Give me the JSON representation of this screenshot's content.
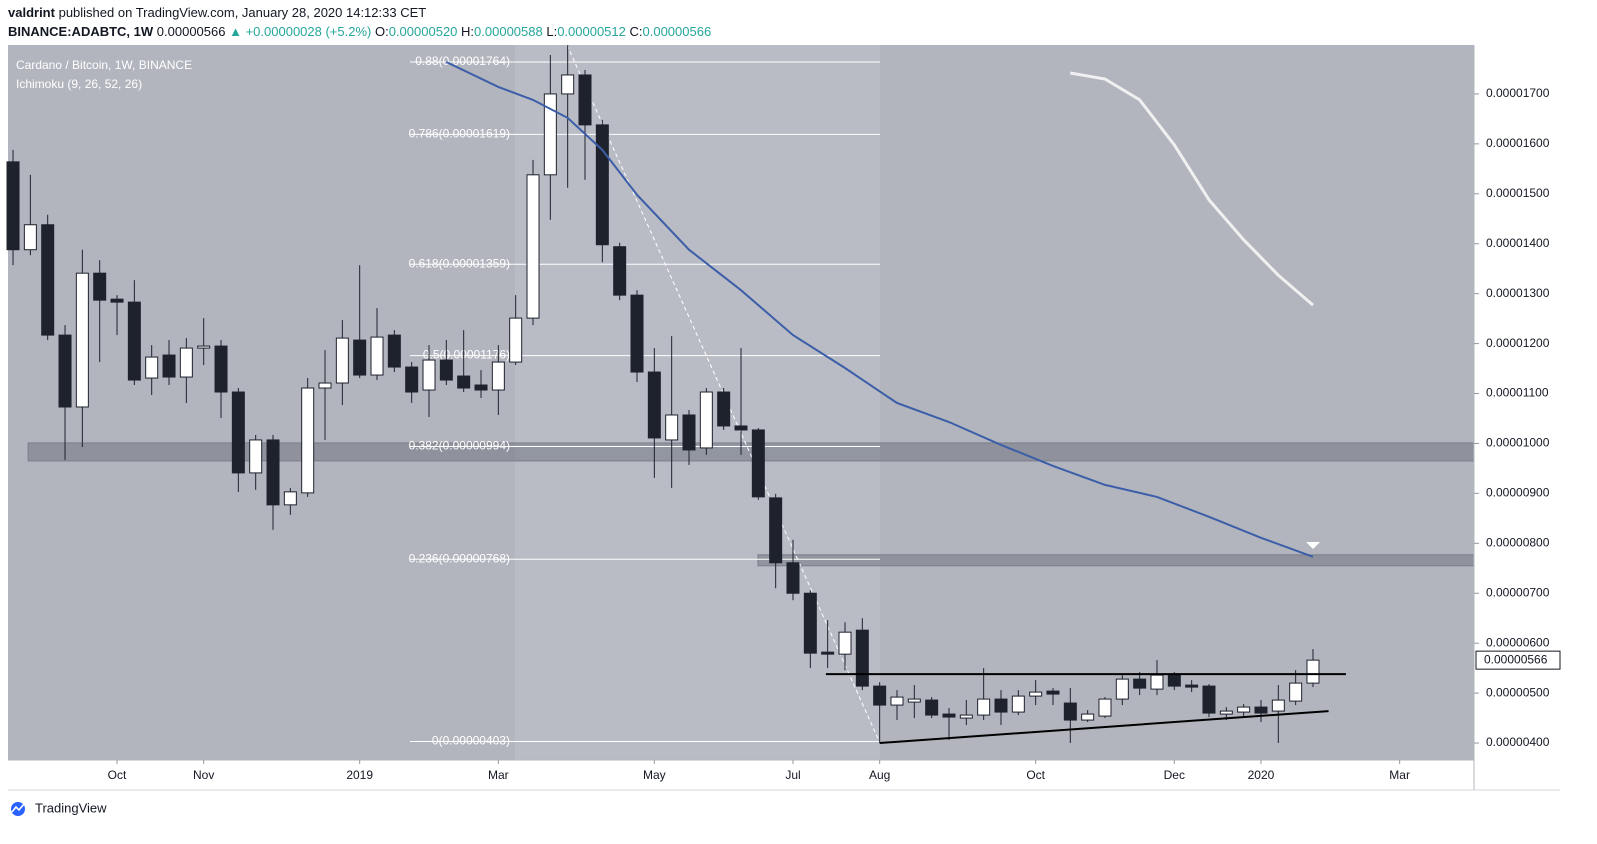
{
  "header": {
    "author": "valdrint",
    "published": "published on TradingView.com, January 28, 2020 14:12:33 CET",
    "symbol": "BINANCE:ADABTC, 1W",
    "last": "0.00000566",
    "change": "▲ +0.00000028 (+5.2%)",
    "o_label": "O:",
    "o": "0.00000520",
    "h_label": "H:",
    "h": "0.00000588",
    "l_label": "L:",
    "l": "0.00000512",
    "c_label": "C:",
    "c": "0.00000566"
  },
  "chart_data": {
    "type": "candlestick",
    "title": "Cardano / Bitcoin, 1W, BINANCE",
    "indicator": "Ichimoku (9, 26, 52, 26)",
    "up_color": "#ffffff",
    "down_color": "#1e222d",
    "wick_color": "#1e222d",
    "open": [
      1.564e-05,
      1.388e-05,
      1.438e-05,
      1.217e-05,
      1.073e-05,
      1.341e-05,
      1.289e-05,
      1.283e-05,
      1.131e-05,
      1.177e-05,
      1.133e-05,
      1.191e-05,
      1.195e-05,
      1.103e-05,
      9.41e-06,
      1.007e-05,
      8.77e-06,
      9.01e-06,
      1.111e-05,
      1.121e-05,
      1.207e-05,
      1.137e-05,
      1.217e-05,
      1.153e-05,
      1.107e-05,
      1.167e-05,
      1.135e-05,
      1.117e-05,
      1.107e-05,
      1.163e-05,
      1.251e-05,
      1.538e-05,
      1.7e-05,
      1.738e-05,
      1.638e-05,
      1.394e-05,
      1.297e-05,
      1.143e-05,
      1.007e-05,
      1.057e-05,
      9.91e-06,
      1.103e-05,
      1.035e-05,
      1.027e-05,
      8.91e-06,
      7.61e-06,
      7e-06,
      5.82e-06,
      5.78e-06,
      6.26e-06,
      5.14e-06,
      4.76e-06,
      4.82e-06,
      4.86e-06,
      4.58e-06,
      4.5e-06,
      4.56e-06,
      4.88e-06,
      4.62e-06,
      4.94e-06,
      5.04e-06,
      4.8e-06,
      4.46e-06,
      4.54e-06,
      4.88e-06,
      5.28e-06,
      5.08e-06,
      5.36e-06,
      5.16e-06,
      5.14e-06,
      4.58e-06,
      4.62e-06,
      4.72e-06,
      4.64e-06,
      4.84e-06,
      5.2e-06
    ],
    "high": [
      1.588e-05,
      1.538e-05,
      1.458e-05,
      1.237e-05,
      1.388e-05,
      1.367e-05,
      1.297e-05,
      1.327e-05,
      1.197e-05,
      1.207e-05,
      1.211e-05,
      1.251e-05,
      1.207e-05,
      1.111e-05,
      1.017e-05,
      1.017e-05,
      9.11e-06,
      1.131e-05,
      1.187e-05,
      1.247e-05,
      1.357e-05,
      1.271e-05,
      1.227e-05,
      1.163e-05,
      1.197e-05,
      1.207e-05,
      1.227e-05,
      1.147e-05,
      1.197e-05,
      1.297e-05,
      1.568e-05,
      1.778e-05,
      1.798e-05,
      1.748e-05,
      1.648e-05,
      1.402e-05,
      1.307e-05,
      1.191e-05,
      1.215e-05,
      1.067e-05,
      1.111e-05,
      1.111e-05,
      1.191e-05,
      1.031e-05,
      8.99e-06,
      8.07e-06,
      7.06e-06,
      6.46e-06,
      6.42e-06,
      6.5e-06,
      5.22e-06,
      5.06e-06,
      5.16e-06,
      4.92e-06,
      4.7e-06,
      4.86e-06,
      5.5e-06,
      5.06e-06,
      5.06e-06,
      5.26e-06,
      5.1e-06,
      5.1e-06,
      4.66e-06,
      4.92e-06,
      5.36e-06,
      5.42e-06,
      5.66e-06,
      5.42e-06,
      5.26e-06,
      5.18e-06,
      4.72e-06,
      4.78e-06,
      4.86e-06,
      5.16e-06,
      5.46e-06,
      5.88e-06
    ],
    "low": [
      1.357e-05,
      1.377e-05,
      1.207e-05,
      9.67e-06,
      9.93e-06,
      1.163e-05,
      1.217e-05,
      1.117e-05,
      1.097e-05,
      1.117e-05,
      1.081e-05,
      1.157e-05,
      1.051e-05,
      9.03e-06,
      9.07e-06,
      8.27e-06,
      8.57e-06,
      8.93e-06,
      1.007e-05,
      1.077e-05,
      1.131e-05,
      1.127e-05,
      1.143e-05,
      1.081e-05,
      1.053e-05,
      1.117e-05,
      1.103e-05,
      1.091e-05,
      1.057e-05,
      1.157e-05,
      1.237e-05,
      1.448e-05,
      1.512e-05,
      1.528e-05,
      1.363e-05,
      1.287e-05,
      1.123e-05,
      9.31e-06,
      9.11e-06,
      9.57e-06,
      9.77e-06,
      1.027e-05,
      9.77e-06,
      8.87e-06,
      7.1e-06,
      6.86e-06,
      5.5e-06,
      5.5e-06,
      5.46e-06,
      5.06e-06,
      4e-06,
      4.46e-06,
      4.5e-06,
      4.5e-06,
      4.06e-06,
      4.36e-06,
      4.46e-06,
      4.36e-06,
      4.56e-06,
      4.76e-06,
      4.76e-06,
      4e-06,
      4.42e-06,
      4.5e-06,
      4.76e-06,
      4.96e-06,
      4.96e-06,
      5.06e-06,
      5.02e-06,
      4.52e-06,
      4.46e-06,
      4.54e-06,
      4.42e-06,
      4e-06,
      4.76e-06,
      5.12e-06
    ],
    "close": [
      1.388e-05,
      1.438e-05,
      1.217e-05,
      1.073e-05,
      1.341e-05,
      1.287e-05,
      1.283e-05,
      1.127e-05,
      1.173e-05,
      1.133e-05,
      1.191e-05,
      1.195e-05,
      1.103e-05,
      9.41e-06,
      1.007e-05,
      8.77e-06,
      9.03e-06,
      1.111e-05,
      1.121e-05,
      1.211e-05,
      1.137e-05,
      1.213e-05,
      1.153e-05,
      1.103e-05,
      1.167e-05,
      1.127e-05,
      1.111e-05,
      1.107e-05,
      1.163e-05,
      1.251e-05,
      1.538e-05,
      1.7e-05,
      1.738e-05,
      1.638e-05,
      1.398e-05,
      1.297e-05,
      1.143e-05,
      1.011e-05,
      1.057e-05,
      9.87e-06,
      1.103e-05,
      1.035e-05,
      1.027e-05,
      8.93e-06,
      7.61e-06,
      7e-06,
      5.8e-06,
      5.78e-06,
      6.22e-06,
      5.14e-06,
      4.76e-06,
      4.92e-06,
      4.88e-06,
      4.56e-06,
      4.52e-06,
      4.56e-06,
      4.88e-06,
      4.62e-06,
      4.94e-06,
      5.02e-06,
      4.98e-06,
      4.46e-06,
      4.58e-06,
      4.88e-06,
      5.28e-06,
      5.1e-06,
      5.36e-06,
      5.14e-06,
      5.12e-06,
      4.6e-06,
      4.64e-06,
      4.72e-06,
      4.6e-06,
      4.86e-06,
      5.2e-06,
      5.66e-06
    ],
    "xlim": [
      -0.29,
      84.29
    ],
    "xticks": [
      {
        "value": 6,
        "label": "Oct"
      },
      {
        "value": 11,
        "label": "Nov"
      },
      {
        "value": 20,
        "label": "2019"
      },
      {
        "value": 28,
        "label": "Mar"
      },
      {
        "value": 37,
        "label": "May"
      },
      {
        "value": 45,
        "label": "Jul"
      },
      {
        "value": 50,
        "label": "Aug"
      },
      {
        "value": 59,
        "label": "Oct"
      },
      {
        "value": 67,
        "label": "Dec"
      },
      {
        "value": 72,
        "label": "2020"
      },
      {
        "value": 80,
        "label": "Mar"
      }
    ],
    "ylim": [
      3.66e-06,
      1.798e-05
    ],
    "yticks": [
      {
        "value": 4e-06,
        "label": "0.00000400"
      },
      {
        "value": 5e-06,
        "label": "0.00000500"
      },
      {
        "value": 6e-06,
        "label": "0.00000600"
      },
      {
        "value": 7e-06,
        "label": "0.00000700"
      },
      {
        "value": 8e-06,
        "label": "0.00000800"
      },
      {
        "value": 9e-06,
        "label": "0.00000900"
      },
      {
        "value": 1e-05,
        "label": "0.00001000"
      },
      {
        "value": 1.1e-05,
        "label": "0.00001100"
      },
      {
        "value": 1.2e-05,
        "label": "0.00001200"
      },
      {
        "value": 1.3e-05,
        "label": "0.00001300"
      },
      {
        "value": 1.4e-05,
        "label": "0.00001400"
      },
      {
        "value": 1.5e-05,
        "label": "0.00001500"
      },
      {
        "value": 1.6e-05,
        "label": "0.00001600"
      },
      {
        "value": 1.7e-05,
        "label": "0.00001700"
      }
    ],
    "price_marker": {
      "value": 5.66e-06,
      "label": "0.00000566"
    },
    "fibonacci": [
      {
        "value": 1.764e-05,
        "label": "0.88(0.00001764)"
      },
      {
        "value": 1.619e-05,
        "label": "0.786(0.00001619)"
      },
      {
        "value": 1.359e-05,
        "label": "0.618(0.00001359)"
      },
      {
        "value": 1.176e-05,
        "label": "0.5(0.00001176)"
      },
      {
        "value": 9.94e-06,
        "label": "0.382(0.00000994)"
      },
      {
        "value": 7.68e-06,
        "label": "0.236(0.00000768)"
      },
      {
        "value": 4.03e-06,
        "label": "0(0.00000403)"
      }
    ],
    "zones": [
      {
        "x": [
          0.87,
          84.29
        ],
        "values": [
          9.65e-06,
          1.001e-05
        ]
      },
      {
        "x": [
          42.98,
          84.29
        ],
        "values": [
          7.55e-06,
          7.77e-06
        ]
      }
    ],
    "lines": [
      {
        "color": "#3c5ea8",
        "x": [
          25,
          28,
          30,
          32,
          34,
          36,
          39,
          42,
          45,
          48,
          51,
          54,
          57,
          60,
          63,
          66,
          69,
          72,
          75
        ],
        "values": [
          1.764e-05,
          1.714e-05,
          1.688e-05,
          1.652e-05,
          1.588e-05,
          1.498e-05,
          1.388e-05,
          1.307e-05,
          1.217e-05,
          1.151e-05,
          1.081e-05,
          1.043e-05,
          9.97e-06,
          9.55e-06,
          9.17e-06,
          8.93e-06,
          8.53e-06,
          8.11e-06,
          7.73e-06
        ]
      },
      {
        "color": "#f0f0f0",
        "x": [
          61,
          63,
          65,
          67,
          69,
          71,
          73,
          75
        ],
        "values": [
          1.742e-05,
          1.73e-05,
          1.688e-05,
          1.598e-05,
          1.488e-05,
          1.408e-05,
          1.337e-05,
          1.277e-05
        ]
      }
    ],
    "trendlines": [
      {
        "x": [
          46.9,
          76.9
        ],
        "values": [
          5.38e-06,
          5.38e-06
        ]
      },
      {
        "x": [
          50,
          75.9
        ],
        "values": [
          4e-06,
          4.64e-06
        ]
      }
    ]
  },
  "footer": {
    "brand": "TradingView"
  }
}
